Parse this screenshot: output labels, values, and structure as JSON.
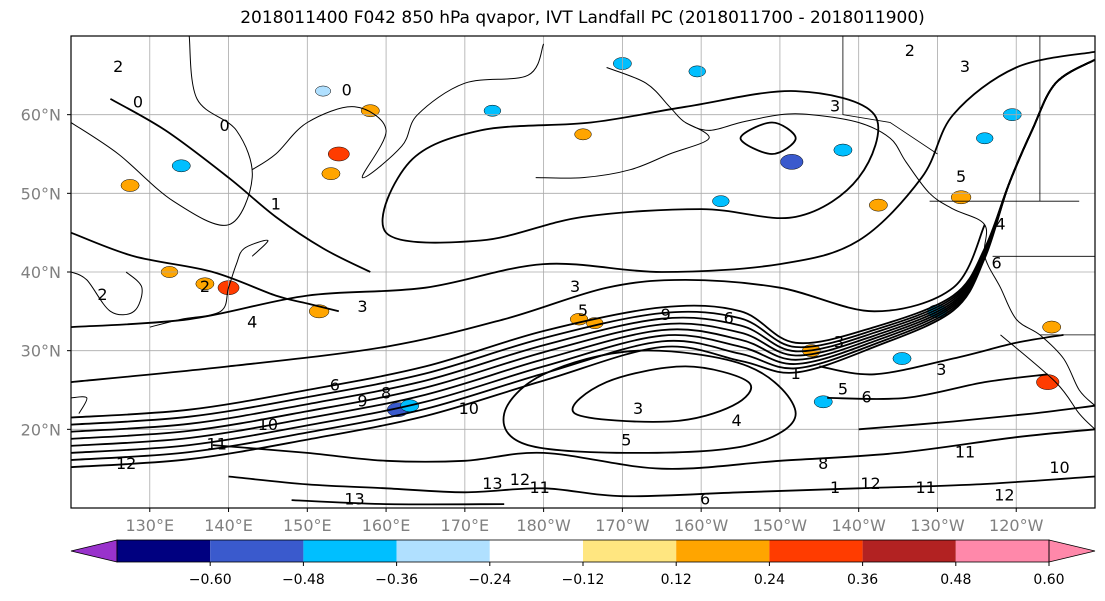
{
  "chart_data": {
    "type": "heatmap",
    "title": "2018011400 F042 850 hPa qvapor, IVT Landfall PC (2018011700 - 2018011900)",
    "map": {
      "lon_range": [
        120,
        250
      ],
      "lat_range": [
        10,
        70
      ],
      "lon_ticks": [
        {
          "lon": 130,
          "label": "130°E"
        },
        {
          "lon": 140,
          "label": "140°E"
        },
        {
          "lon": 150,
          "label": "150°E"
        },
        {
          "lon": 160,
          "label": "160°E"
        },
        {
          "lon": 170,
          "label": "170°E"
        },
        {
          "lon": 180,
          "label": "180°W"
        },
        {
          "lon": 190,
          "label": "170°W"
        },
        {
          "lon": 200,
          "label": "160°W"
        },
        {
          "lon": 210,
          "label": "150°W"
        },
        {
          "lon": 220,
          "label": "140°W"
        },
        {
          "lon": 230,
          "label": "130°W"
        },
        {
          "lon": 240,
          "label": "120°W"
        }
      ],
      "lat_ticks": [
        {
          "lat": 20,
          "label": "20°N"
        },
        {
          "lat": 30,
          "label": "30°N"
        },
        {
          "lat": 40,
          "label": "40°N"
        },
        {
          "lat": 50,
          "label": "50°N"
        },
        {
          "lat": 60,
          "label": "60°N"
        }
      ],
      "grid": true
    },
    "colorbar": {
      "ticks": [
        "−0.60",
        "−0.48",
        "−0.36",
        "−0.24",
        "−0.12",
        "0.12",
        "0.24",
        "0.36",
        "0.48",
        "0.60"
      ],
      "levels": [
        -0.6,
        -0.48,
        -0.36,
        -0.24,
        -0.12,
        0.12,
        0.24,
        0.36,
        0.48,
        0.6
      ],
      "colors": [
        "#9932cc",
        "#000080",
        "#3a5acd",
        "#00bfff",
        "#b0e0ff",
        "#ffffff",
        "#ffe680",
        "#ffa500",
        "#ff3c00",
        "#b22222",
        "#ff88aa"
      ]
    },
    "contour_labels": [
      {
        "text": "0",
        "lon": 155.0,
        "lat": 63.0
      },
      {
        "text": "0",
        "lon": 128.5,
        "lat": 61.5
      },
      {
        "text": "0",
        "lon": 139.5,
        "lat": 58.5
      },
      {
        "text": "1",
        "lon": 146.0,
        "lat": 48.5
      },
      {
        "text": "2",
        "lon": 126.0,
        "lat": 66.0
      },
      {
        "text": "2",
        "lon": 124.0,
        "lat": 37.0
      },
      {
        "text": "2",
        "lon": 137.0,
        "lat": 38.0
      },
      {
        "text": "3",
        "lon": 157.0,
        "lat": 35.5
      },
      {
        "text": "4",
        "lon": 143.0,
        "lat": 33.5
      },
      {
        "text": "3",
        "lon": 184.0,
        "lat": 38.0
      },
      {
        "text": "5",
        "lon": 185.0,
        "lat": 35.0
      },
      {
        "text": "9",
        "lon": 195.5,
        "lat": 34.5
      },
      {
        "text": "6",
        "lon": 203.5,
        "lat": 34.0
      },
      {
        "text": "6",
        "lon": 153.5,
        "lat": 25.5
      },
      {
        "text": "9",
        "lon": 157.0,
        "lat": 23.5
      },
      {
        "text": "8",
        "lon": 160.0,
        "lat": 24.5
      },
      {
        "text": "10",
        "lon": 145.0,
        "lat": 20.5
      },
      {
        "text": "11",
        "lon": 138.5,
        "lat": 18.0
      },
      {
        "text": "12",
        "lon": 127.0,
        "lat": 15.5
      },
      {
        "text": "10",
        "lon": 170.5,
        "lat": 22.5
      },
      {
        "text": "3",
        "lon": 192.0,
        "lat": 22.5
      },
      {
        "text": "4",
        "lon": 204.5,
        "lat": 21.0
      },
      {
        "text": "5",
        "lon": 190.5,
        "lat": 18.5
      },
      {
        "text": "2",
        "lon": 226.5,
        "lat": 68.0
      },
      {
        "text": "3",
        "lon": 233.5,
        "lat": 66.0
      },
      {
        "text": "3",
        "lon": 217.0,
        "lat": 61.0
      },
      {
        "text": "5",
        "lon": 233.0,
        "lat": 52.0
      },
      {
        "text": "4",
        "lon": 238.0,
        "lat": 46.0
      },
      {
        "text": "6",
        "lon": 237.5,
        "lat": 41.0
      },
      {
        "text": "3",
        "lon": 217.5,
        "lat": 31.0
      },
      {
        "text": "5",
        "lon": 218.0,
        "lat": 25.0
      },
      {
        "text": "3",
        "lon": 230.5,
        "lat": 27.5
      },
      {
        "text": "6",
        "lon": 221.0,
        "lat": 24.0
      },
      {
        "text": "11",
        "lon": 233.5,
        "lat": 17.0
      },
      {
        "text": "11",
        "lon": 228.5,
        "lat": 12.5
      },
      {
        "text": "12",
        "lon": 221.5,
        "lat": 13.0
      },
      {
        "text": "12",
        "lon": 238.5,
        "lat": 11.5
      },
      {
        "text": "10",
        "lon": 245.5,
        "lat": 15.0
      },
      {
        "text": "13",
        "lon": 156.0,
        "lat": 11.0
      },
      {
        "text": "13",
        "lon": 173.5,
        "lat": 13.0
      },
      {
        "text": "12",
        "lon": 177.0,
        "lat": 13.5
      },
      {
        "text": "11",
        "lon": 179.5,
        "lat": 12.5
      },
      {
        "text": "6",
        "lon": 200.5,
        "lat": 11.0
      },
      {
        "text": "8",
        "lon": 215.5,
        "lat": 15.5
      },
      {
        "text": "1",
        "lon": 217.0,
        "lat": 12.5
      },
      {
        "text": "1",
        "lon": 212.0,
        "lat": 27.0
      }
    ],
    "shaded_patches": [
      {
        "lon": 154.0,
        "lat": 55.0,
        "value": 0.4
      },
      {
        "lon": 153.0,
        "lat": 52.5,
        "value": 0.3
      },
      {
        "lon": 158.0,
        "lat": 60.5,
        "value": 0.3
      },
      {
        "lon": 134.0,
        "lat": 53.5,
        "value": -0.3
      },
      {
        "lon": 127.5,
        "lat": 51.0,
        "value": 0.3
      },
      {
        "lon": 132.5,
        "lat": 40.0,
        "value": 0.25
      },
      {
        "lon": 137.0,
        "lat": 38.5,
        "value": 0.3
      },
      {
        "lon": 140.0,
        "lat": 38.0,
        "value": 0.4
      },
      {
        "lon": 151.5,
        "lat": 35.0,
        "value": 0.35
      },
      {
        "lon": 184.5,
        "lat": 34.0,
        "value": 0.28
      },
      {
        "lon": 186.5,
        "lat": 33.5,
        "value": 0.25
      },
      {
        "lon": 161.5,
        "lat": 22.5,
        "value": -0.4
      },
      {
        "lon": 163.0,
        "lat": 23.0,
        "value": -0.3
      },
      {
        "lon": 190.0,
        "lat": 66.5,
        "value": -0.3
      },
      {
        "lon": 199.5,
        "lat": 65.5,
        "value": -0.25
      },
      {
        "lon": 185.0,
        "lat": 57.5,
        "value": 0.25
      },
      {
        "lon": 211.5,
        "lat": 54.0,
        "value": -0.45
      },
      {
        "lon": 218.0,
        "lat": 55.5,
        "value": -0.3
      },
      {
        "lon": 222.5,
        "lat": 48.5,
        "value": 0.3
      },
      {
        "lon": 230.0,
        "lat": 35.0,
        "value": -0.35
      },
      {
        "lon": 225.5,
        "lat": 29.0,
        "value": -0.3
      },
      {
        "lon": 215.5,
        "lat": 23.5,
        "value": -0.3
      },
      {
        "lon": 244.0,
        "lat": 26.0,
        "value": 0.45
      },
      {
        "lon": 244.5,
        "lat": 33.0,
        "value": 0.3
      },
      {
        "lon": 214.0,
        "lat": 30.0,
        "value": 0.3
      },
      {
        "lon": 239.5,
        "lat": 60.0,
        "value": -0.3
      },
      {
        "lon": 236.0,
        "lat": 57.0,
        "value": -0.25
      },
      {
        "lon": 152.0,
        "lat": 63.0,
        "value": -0.2
      },
      {
        "lon": 173.5,
        "lat": 60.5,
        "value": -0.25
      },
      {
        "lon": 202.5,
        "lat": 49.0,
        "value": -0.25
      },
      {
        "lon": 233.0,
        "lat": 49.5,
        "value": 0.35
      }
    ]
  }
}
